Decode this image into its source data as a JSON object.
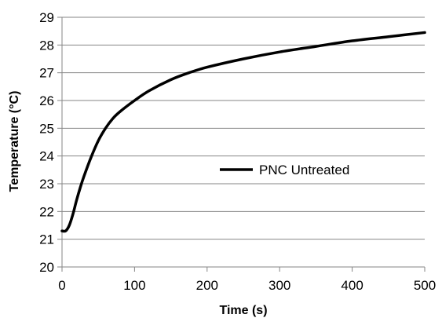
{
  "chart_data": {
    "type": "line",
    "title": "",
    "xlabel": "Time (s)",
    "ylabel": "Temperature (°C)",
    "xlim": [
      0,
      500
    ],
    "ylim": [
      20,
      29
    ],
    "xticks": [
      0,
      100,
      200,
      300,
      400,
      500
    ],
    "yticks": [
      20,
      21,
      22,
      23,
      24,
      25,
      26,
      27,
      28,
      29
    ],
    "grid": true,
    "legend_position": "center-right",
    "series": [
      {
        "name": "PNC Untreated",
        "color": "#000000",
        "x": [
          0,
          5,
          10,
          15,
          20,
          25,
          30,
          40,
          50,
          60,
          70,
          80,
          100,
          120,
          150,
          175,
          200,
          250,
          300,
          350,
          400,
          450,
          500
        ],
        "y": [
          21.3,
          21.3,
          21.5,
          21.9,
          22.4,
          22.85,
          23.25,
          23.95,
          24.55,
          25.0,
          25.35,
          25.6,
          26.0,
          26.35,
          26.75,
          27.0,
          27.2,
          27.5,
          27.75,
          27.95,
          28.15,
          28.3,
          28.45
        ]
      }
    ]
  }
}
